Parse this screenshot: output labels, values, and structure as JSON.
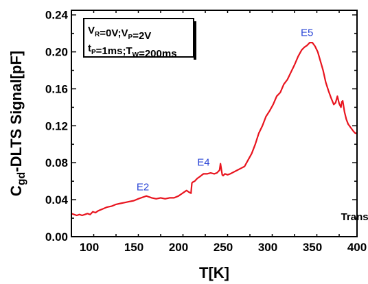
{
  "chart_data": {
    "type": "line",
    "xlabel": "T[K]",
    "ylabel_main": "C",
    "ylabel_sub": "gd",
    "ylabel_rest": "-DLTS Signal[pF]",
    "xlim": [
      80,
      400
    ],
    "ylim": [
      0.0,
      0.245
    ],
    "xticks": [
      100,
      150,
      200,
      250,
      300,
      350,
      400
    ],
    "xtick_labels": [
      "100",
      "150",
      "200",
      "250",
      "300",
      "350",
      "400"
    ],
    "yticks": [
      0.0,
      0.04,
      0.08,
      0.12,
      0.16,
      0.2,
      0.24
    ],
    "ytick_labels": [
      "0.00",
      "0.04",
      "0.08",
      "0.12",
      "0.16",
      "0.20",
      "0.24"
    ],
    "line_color": "#e8141e",
    "peak_color": "#2a45d6",
    "legend": {
      "placement": "top-left",
      "lines": [
        [
          {
            "t": "V"
          },
          {
            "s": "R"
          },
          {
            "t": "=0V;V"
          },
          {
            "s": "P"
          },
          {
            "t": "=2V"
          }
        ],
        [
          {
            "t": "t"
          },
          {
            "s": "P"
          },
          {
            "t": "=1ms;T"
          },
          {
            "s": "W"
          },
          {
            "t": "=200ms"
          }
        ]
      ]
    },
    "note": {
      "text": "Transistor",
      "x": 382,
      "y": 0.018
    },
    "peaks": [
      {
        "label": "E2",
        "x": 160,
        "y": 0.05
      },
      {
        "label": "E4",
        "x": 228,
        "y": 0.077
      },
      {
        "label": "E5",
        "x": 344,
        "y": 0.217
      }
    ],
    "series": [
      {
        "x": [
          80,
          83,
          86,
          89,
          92,
          95,
          98,
          101,
          104,
          107,
          110,
          115,
          120,
          125,
          130,
          135,
          140,
          145,
          150,
          155,
          158,
          161,
          164,
          167,
          170,
          175,
          180,
          185,
          190,
          195,
          200,
          203,
          206,
          209,
          212,
          214,
          215,
          216,
          218,
          221,
          224,
          228,
          232,
          236,
          240,
          243,
          246,
          247,
          248,
          249,
          250,
          252,
          255,
          258,
          262,
          266,
          270,
          274,
          278,
          282,
          286,
          290,
          294,
          298,
          302,
          306,
          310,
          314,
          318,
          322,
          326,
          330,
          334,
          338,
          341,
          344,
          347,
          350,
          353,
          356,
          359,
          362,
          365,
          368,
          371,
          374,
          376,
          378,
          380,
          382,
          383,
          384,
          386,
          388,
          390,
          393,
          396,
          398,
          400
        ],
        "y": [
          0.025,
          0.024,
          0.023,
          0.024,
          0.023,
          0.024,
          0.025,
          0.024,
          0.027,
          0.026,
          0.028,
          0.03,
          0.032,
          0.033,
          0.035,
          0.036,
          0.037,
          0.038,
          0.039,
          0.041,
          0.042,
          0.043,
          0.044,
          0.043,
          0.042,
          0.041,
          0.042,
          0.041,
          0.042,
          0.042,
          0.044,
          0.046,
          0.048,
          0.05,
          0.048,
          0.047,
          0.058,
          0.059,
          0.06,
          0.063,
          0.065,
          0.068,
          0.068,
          0.069,
          0.068,
          0.069,
          0.072,
          0.079,
          0.073,
          0.067,
          0.066,
          0.068,
          0.067,
          0.068,
          0.07,
          0.072,
          0.074,
          0.076,
          0.083,
          0.09,
          0.1,
          0.112,
          0.12,
          0.13,
          0.136,
          0.143,
          0.152,
          0.156,
          0.165,
          0.17,
          0.178,
          0.186,
          0.195,
          0.202,
          0.205,
          0.207,
          0.21,
          0.21,
          0.206,
          0.2,
          0.19,
          0.18,
          0.167,
          0.158,
          0.15,
          0.143,
          0.145,
          0.152,
          0.144,
          0.14,
          0.146,
          0.147,
          0.135,
          0.127,
          0.122,
          0.118,
          0.114,
          0.112,
          0.112
        ]
      }
    ]
  }
}
